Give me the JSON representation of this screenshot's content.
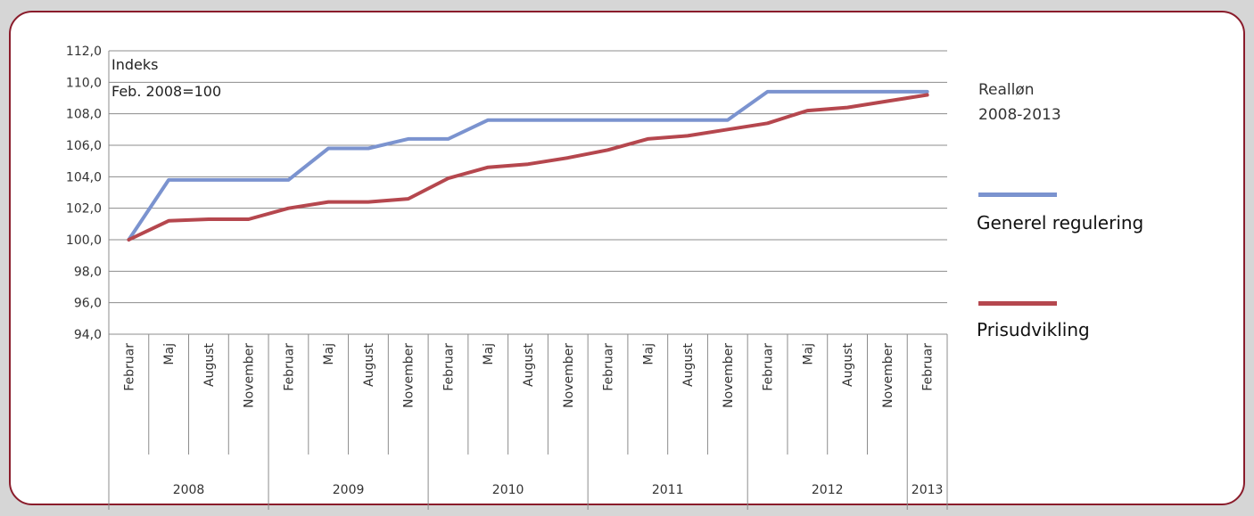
{
  "chart_data": {
    "type": "line",
    "title": "Realløn 2008-2013",
    "annotation": [
      "Indeks",
      "Feb. 2008=100"
    ],
    "ylim": [
      94,
      112
    ],
    "yticks": [
      "94,0",
      "96,0",
      "98,0",
      "100,0",
      "102,0",
      "104,0",
      "106,0",
      "108,0",
      "110,0",
      "112,0"
    ],
    "categories": [
      "Februar",
      "Maj",
      "August",
      "November",
      "Februar",
      "Maj",
      "August",
      "November",
      "Februar",
      "Maj",
      "August",
      "November",
      "Februar",
      "Maj",
      "August",
      "November",
      "Februar",
      "Maj",
      "August",
      "November",
      "Februar"
    ],
    "years": [
      {
        "label": "2008",
        "span": 4
      },
      {
        "label": "2009",
        "span": 4
      },
      {
        "label": "2010",
        "span": 4
      },
      {
        "label": "2011",
        "span": 4
      },
      {
        "label": "2012",
        "span": 4
      },
      {
        "label": "2013",
        "span": 1
      }
    ],
    "series": [
      {
        "name": "Generel regulering",
        "color": "#7b93cf",
        "values": [
          100.0,
          103.8,
          103.8,
          103.8,
          103.8,
          105.8,
          105.8,
          106.4,
          106.4,
          107.6,
          107.6,
          107.6,
          107.6,
          107.6,
          107.6,
          107.6,
          109.4,
          109.4,
          109.4,
          109.4,
          109.4
        ]
      },
      {
        "name": "Prisudvikling",
        "color": "#b5474e",
        "values": [
          100.0,
          101.2,
          101.3,
          101.3,
          102.0,
          102.4,
          102.4,
          102.6,
          103.9,
          104.6,
          104.8,
          105.2,
          105.7,
          106.4,
          106.6,
          107.0,
          107.4,
          108.2,
          108.4,
          108.8,
          109.2
        ]
      }
    ],
    "grid": true,
    "legend_position": "right"
  }
}
